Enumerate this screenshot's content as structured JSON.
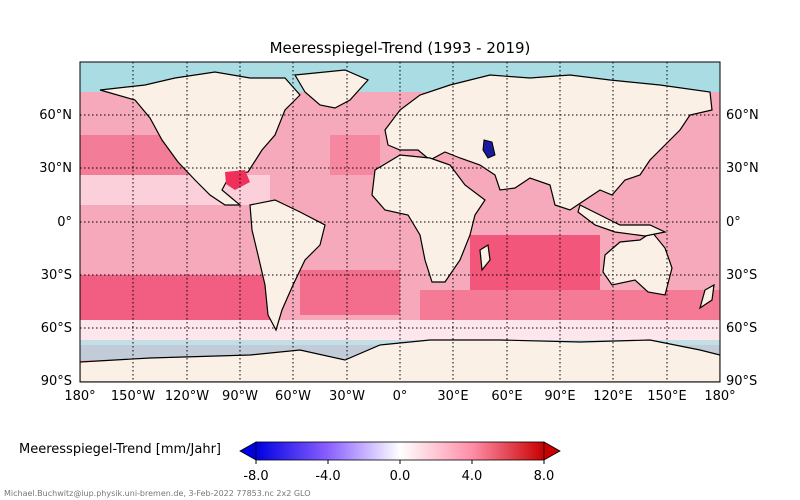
{
  "title": "Meeresspiegel-Trend (1993 - 2019)",
  "lat_ticks": [
    "90°S",
    "60°S",
    "30°S",
    "0°",
    "30°N",
    "60°N"
  ],
  "lon_ticks": [
    "180°",
    "150°W",
    "120°W",
    "90°W",
    "60°W",
    "30°W",
    "0°",
    "30°E",
    "60°E",
    "90°E",
    "120°E",
    "150°E",
    "180°"
  ],
  "colorbar": {
    "label": "Meeresspiegel-Trend [mm/Jahr]",
    "ticks": [
      "-8.0",
      "-4.0",
      "0.0",
      "4.0",
      "8.0"
    ],
    "range": [
      -8,
      8
    ]
  },
  "credit": "Michael.Buchwitz@iup.physik.uni-bremen.de, 3-Feb-2022 77853.nc 2x2 GLO",
  "colors": {
    "ocean_base": "#f7a9bc",
    "land": "#faf0e6",
    "sea_ice": "#aadce4",
    "strong_rise": "#f0305a",
    "fall": "#1a1a9c"
  }
}
